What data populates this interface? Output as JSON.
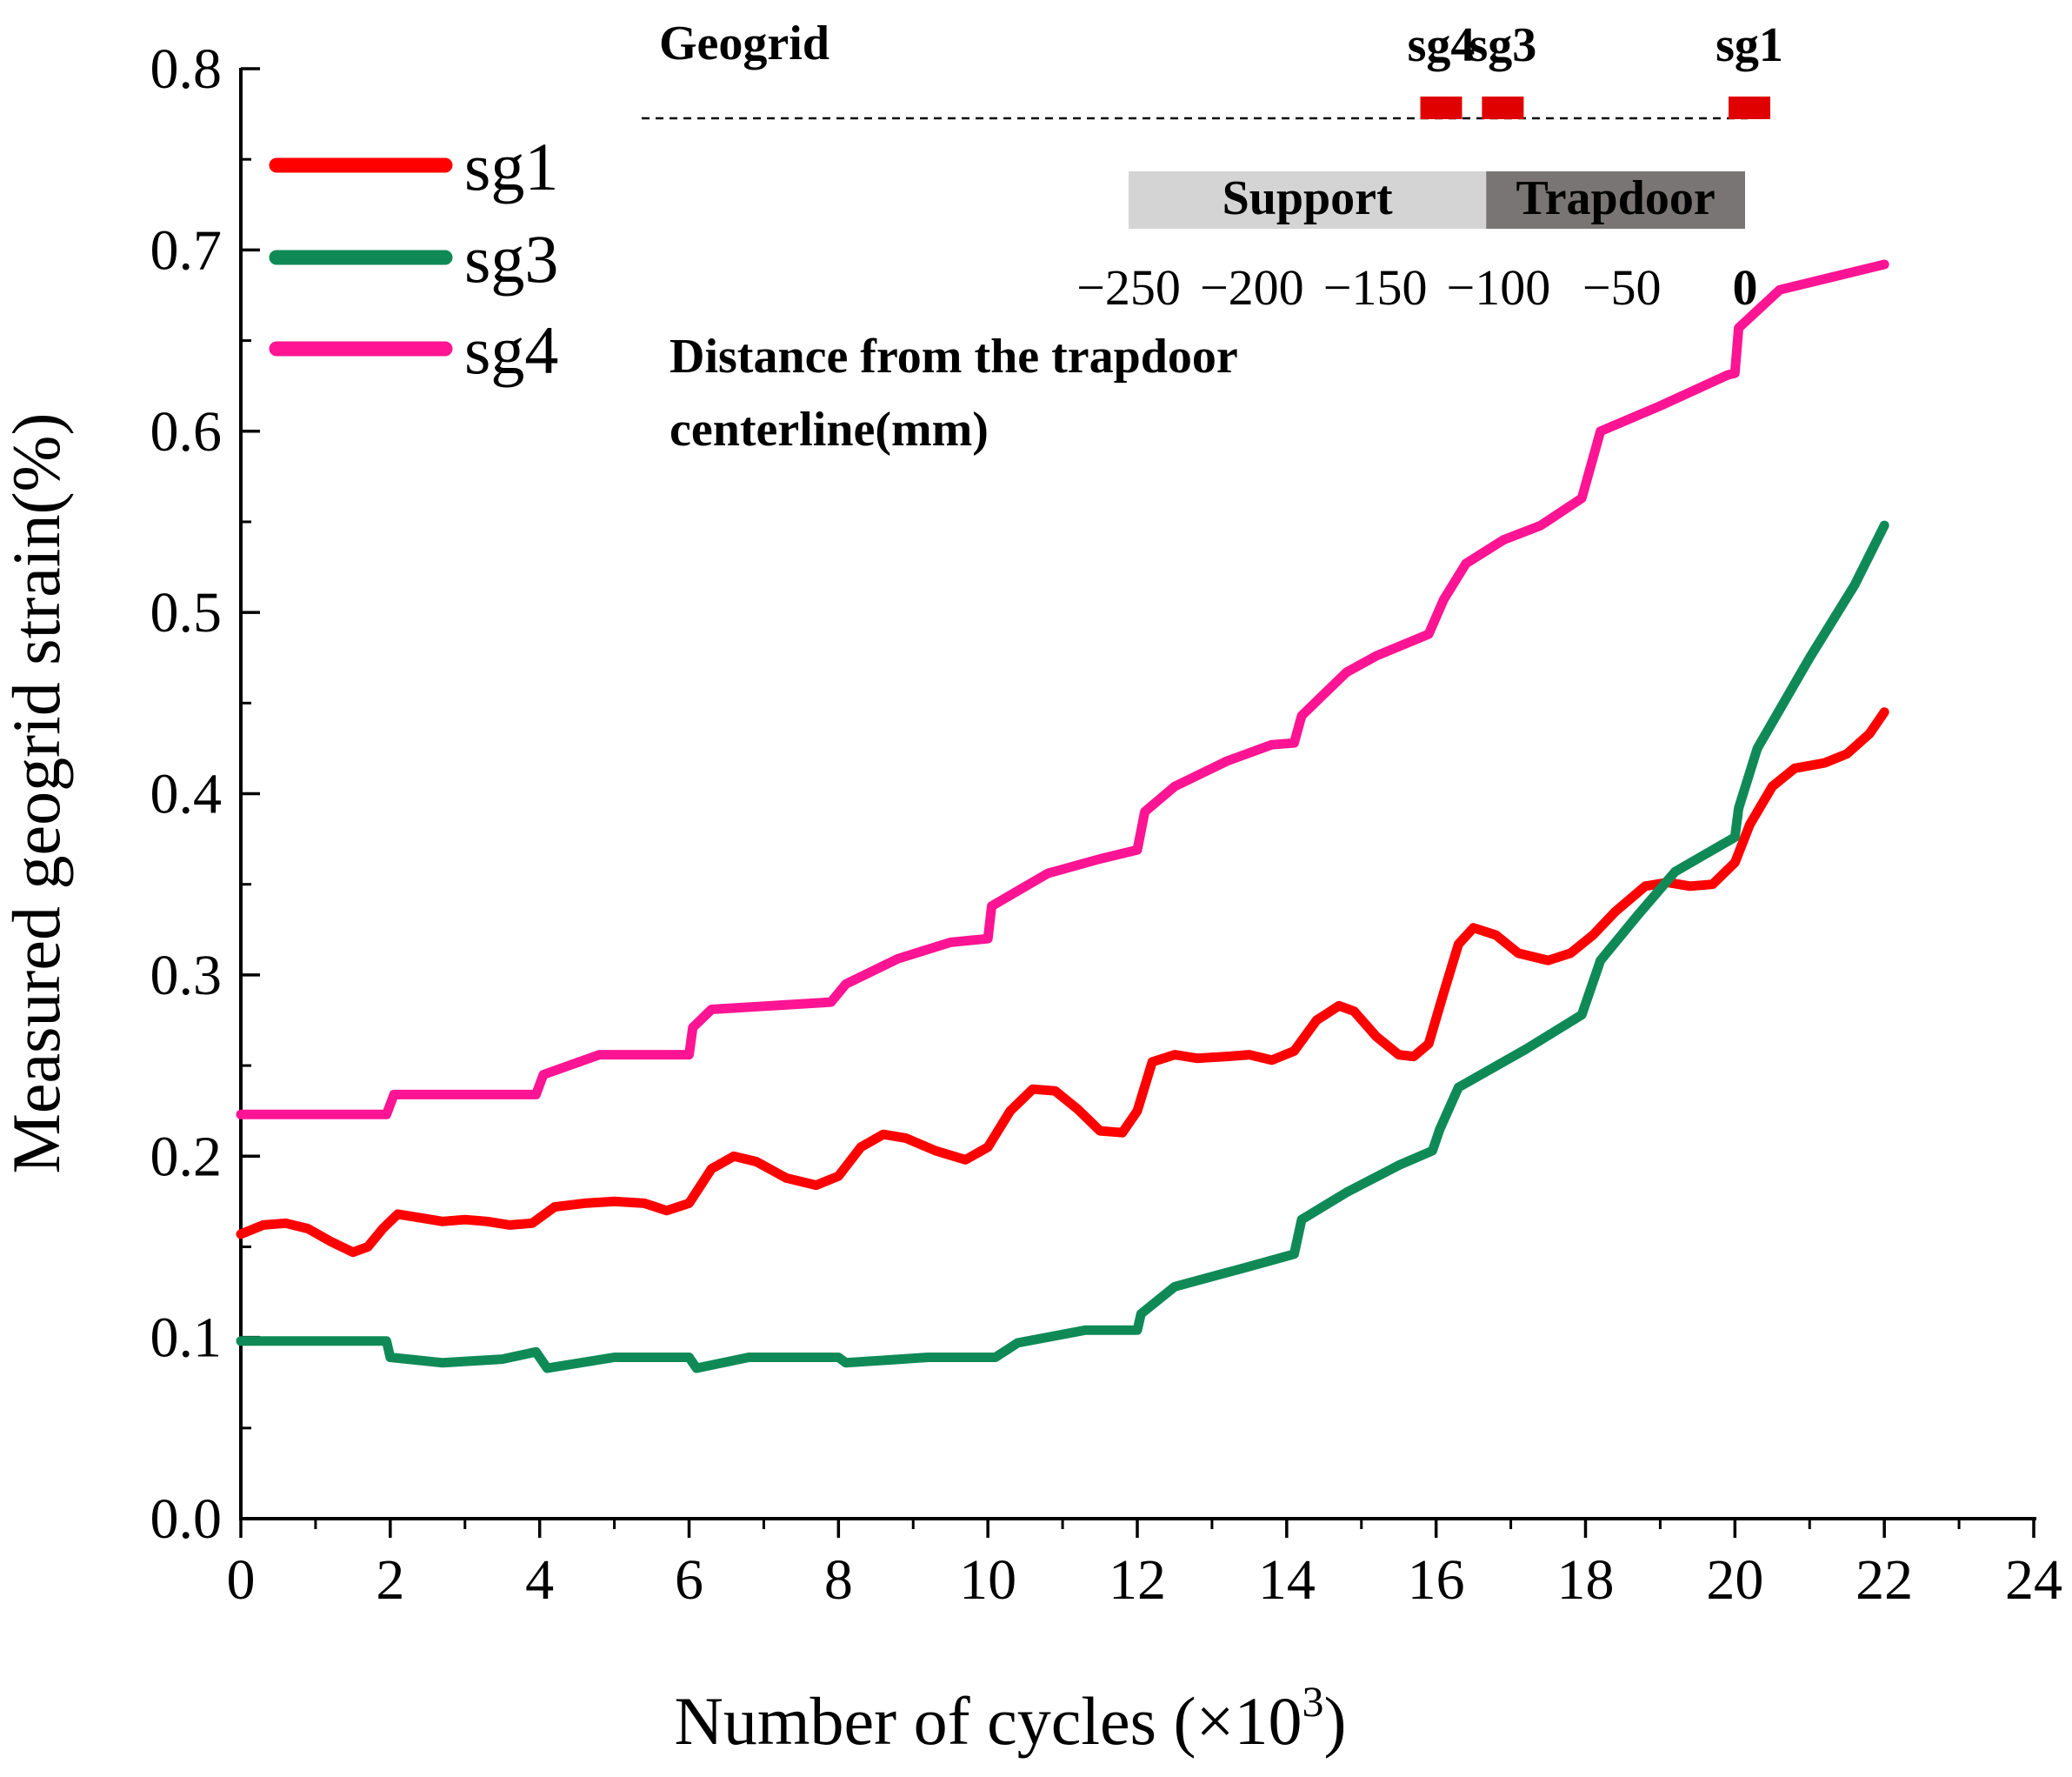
{
  "chart_data": {
    "type": "line",
    "xlabel_main": "Number of cycles (×10",
    "xlabel_exp": "3",
    "xlabel_close": ")",
    "ylabel": "Measured geogrid strain(%)",
    "xlim": [
      0,
      24
    ],
    "ylim": [
      0.0,
      0.8
    ],
    "x_ticks": [
      0,
      2,
      4,
      6,
      8,
      10,
      12,
      14,
      16,
      18,
      20,
      22,
      24
    ],
    "x_tick_labels": [
      "0",
      "2",
      "4",
      "6",
      "8",
      "10",
      "12",
      "14",
      "16",
      "18",
      "20",
      "22",
      "24"
    ],
    "y_ticks": [
      0.0,
      0.1,
      0.2,
      0.3,
      0.4,
      0.5,
      0.6,
      0.7,
      0.8
    ],
    "y_tick_labels": [
      "0.0",
      "0.1",
      "0.2",
      "0.3",
      "0.4",
      "0.5",
      "0.6",
      "0.7",
      "0.8"
    ],
    "series": [
      {
        "name": "sg1",
        "color": "#ff0000",
        "points": [
          [
            0,
            0.157
          ],
          [
            0.3,
            0.162
          ],
          [
            0.6,
            0.163
          ],
          [
            0.9,
            0.16
          ],
          [
            1.2,
            0.153
          ],
          [
            1.5,
            0.147
          ],
          [
            1.7,
            0.15
          ],
          [
            1.9,
            0.16
          ],
          [
            2.1,
            0.168
          ],
          [
            2.4,
            0.166
          ],
          [
            2.7,
            0.164
          ],
          [
            3.0,
            0.165
          ],
          [
            3.3,
            0.164
          ],
          [
            3.6,
            0.162
          ],
          [
            3.9,
            0.163
          ],
          [
            4.2,
            0.172
          ],
          [
            4.6,
            0.174
          ],
          [
            5.0,
            0.175
          ],
          [
            5.4,
            0.174
          ],
          [
            5.7,
            0.17
          ],
          [
            6.0,
            0.174
          ],
          [
            6.3,
            0.193
          ],
          [
            6.6,
            0.2
          ],
          [
            6.9,
            0.197
          ],
          [
            7.3,
            0.188
          ],
          [
            7.7,
            0.184
          ],
          [
            8.0,
            0.189
          ],
          [
            8.3,
            0.205
          ],
          [
            8.6,
            0.212
          ],
          [
            8.9,
            0.21
          ],
          [
            9.3,
            0.203
          ],
          [
            9.7,
            0.198
          ],
          [
            10.0,
            0.205
          ],
          [
            10.3,
            0.225
          ],
          [
            10.6,
            0.237
          ],
          [
            10.9,
            0.236
          ],
          [
            11.2,
            0.226
          ],
          [
            11.5,
            0.214
          ],
          [
            11.8,
            0.213
          ],
          [
            12.0,
            0.225
          ],
          [
            12.2,
            0.252
          ],
          [
            12.5,
            0.256
          ],
          [
            12.8,
            0.254
          ],
          [
            13.2,
            0.255
          ],
          [
            13.5,
            0.256
          ],
          [
            13.8,
            0.253
          ],
          [
            14.1,
            0.258
          ],
          [
            14.4,
            0.275
          ],
          [
            14.7,
            0.283
          ],
          [
            14.9,
            0.28
          ],
          [
            15.2,
            0.266
          ],
          [
            15.5,
            0.256
          ],
          [
            15.7,
            0.255
          ],
          [
            15.9,
            0.262
          ],
          [
            16.1,
            0.29
          ],
          [
            16.3,
            0.317
          ],
          [
            16.5,
            0.326
          ],
          [
            16.8,
            0.322
          ],
          [
            17.1,
            0.312
          ],
          [
            17.5,
            0.308
          ],
          [
            17.8,
            0.312
          ],
          [
            18.1,
            0.322
          ],
          [
            18.4,
            0.335
          ],
          [
            18.8,
            0.349
          ],
          [
            19.1,
            0.351
          ],
          [
            19.4,
            0.349
          ],
          [
            19.7,
            0.35
          ],
          [
            20.0,
            0.362
          ],
          [
            20.2,
            0.383
          ],
          [
            20.5,
            0.404
          ],
          [
            20.8,
            0.414
          ],
          [
            21.2,
            0.417
          ],
          [
            21.5,
            0.422
          ],
          [
            21.8,
            0.433
          ],
          [
            22.0,
            0.445
          ]
        ]
      },
      {
        "name": "sg3",
        "color": "#0f8a57",
        "points": [
          [
            0,
            0.098
          ],
          [
            1.95,
            0.098
          ],
          [
            2.0,
            0.089
          ],
          [
            2.7,
            0.086
          ],
          [
            3.5,
            0.088
          ],
          [
            3.95,
            0.092
          ],
          [
            4.1,
            0.083
          ],
          [
            5.0,
            0.089
          ],
          [
            6.0,
            0.089
          ],
          [
            6.1,
            0.083
          ],
          [
            6.8,
            0.089
          ],
          [
            8.0,
            0.089
          ],
          [
            8.1,
            0.086
          ],
          [
            9.2,
            0.089
          ],
          [
            10.1,
            0.089
          ],
          [
            10.4,
            0.097
          ],
          [
            11.3,
            0.104
          ],
          [
            12.0,
            0.104
          ],
          [
            12.05,
            0.113
          ],
          [
            12.5,
            0.128
          ],
          [
            13.4,
            0.138
          ],
          [
            14.1,
            0.146
          ],
          [
            14.2,
            0.165
          ],
          [
            14.8,
            0.18
          ],
          [
            15.5,
            0.195
          ],
          [
            15.95,
            0.203
          ],
          [
            16.05,
            0.215
          ],
          [
            16.3,
            0.238
          ],
          [
            17.2,
            0.259
          ],
          [
            17.95,
            0.278
          ],
          [
            18.2,
            0.308
          ],
          [
            18.7,
            0.333
          ],
          [
            19.2,
            0.357
          ],
          [
            20.0,
            0.376
          ],
          [
            20.05,
            0.392
          ],
          [
            20.3,
            0.425
          ],
          [
            21.0,
            0.475
          ],
          [
            21.6,
            0.515
          ],
          [
            22.0,
            0.548
          ]
        ]
      },
      {
        "name": "sg4",
        "color": "#ff1493",
        "points": [
          [
            0,
            0.223
          ],
          [
            1.95,
            0.223
          ],
          [
            2.05,
            0.234
          ],
          [
            3.95,
            0.234
          ],
          [
            4.05,
            0.245
          ],
          [
            4.8,
            0.256
          ],
          [
            6.0,
            0.256
          ],
          [
            6.05,
            0.271
          ],
          [
            6.3,
            0.281
          ],
          [
            7.9,
            0.285
          ],
          [
            8.1,
            0.295
          ],
          [
            8.8,
            0.309
          ],
          [
            9.5,
            0.318
          ],
          [
            10.0,
            0.32
          ],
          [
            10.05,
            0.338
          ],
          [
            10.8,
            0.356
          ],
          [
            11.5,
            0.364
          ],
          [
            12.0,
            0.369
          ],
          [
            12.1,
            0.39
          ],
          [
            12.5,
            0.404
          ],
          [
            13.2,
            0.418
          ],
          [
            13.8,
            0.427
          ],
          [
            14.1,
            0.428
          ],
          [
            14.2,
            0.443
          ],
          [
            14.8,
            0.467
          ],
          [
            15.2,
            0.476
          ],
          [
            15.9,
            0.488
          ],
          [
            16.1,
            0.507
          ],
          [
            16.4,
            0.527
          ],
          [
            16.9,
            0.54
          ],
          [
            17.4,
            0.548
          ],
          [
            17.95,
            0.563
          ],
          [
            18.2,
            0.6
          ],
          [
            19.0,
            0.614
          ],
          [
            19.9,
            0.631
          ],
          [
            20.0,
            0.632
          ],
          [
            20.05,
            0.657
          ],
          [
            20.6,
            0.678
          ],
          [
            21.3,
            0.685
          ],
          [
            22.0,
            0.692
          ]
        ]
      }
    ],
    "legend": [
      "sg1",
      "sg3",
      "sg4"
    ],
    "legend_position": "top-left"
  },
  "inset": {
    "geogrid_label": "Geogrid",
    "gauges": [
      {
        "label": "sg4",
        "distance_mm": -125
      },
      {
        "label": "sg3",
        "distance_mm": -100
      },
      {
        "label": "sg1",
        "distance_mm": 0
      }
    ],
    "support_label": "Support",
    "trapdoor_label": "Trapdoor",
    "support_range_mm": [
      -250,
      -105
    ],
    "trapdoor_range_mm": [
      -105,
      0
    ],
    "ticks": [
      -250,
      -200,
      -150,
      -100,
      -50,
      0
    ],
    "tick_labels": [
      "−250",
      "−200",
      "−150",
      "−100",
      "−50",
      "0"
    ],
    "distance_label_line1": "Distance from the trapdoor",
    "distance_label_line2": "centerline(mm)",
    "colors": {
      "support": "#d4d4d4",
      "trapdoor": "#7a7575",
      "gauge": "#e00000"
    }
  }
}
